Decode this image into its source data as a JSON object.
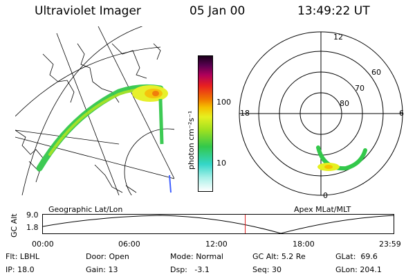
{
  "header": {
    "title": "Ultraviolet Imager",
    "date": "05 Jan 00",
    "time": "13:49:22 UT"
  },
  "colorbar": {
    "unit_label": "photon cm⁻²s⁻¹",
    "tick_high": "100",
    "tick_low": "10"
  },
  "polar_plot": {
    "mlt_labels": {
      "top": "12",
      "left": "18",
      "right": "6",
      "bottom": "0"
    },
    "lat_labels": [
      "60",
      "70",
      "80"
    ]
  },
  "map_labels": {
    "left": "Geographic Lat/Lon",
    "right": "Apex MLat/MLT"
  },
  "orbit_panel": {
    "ylabel": "GC Alt",
    "ytick_high": "9.0",
    "ytick_low": "1.8",
    "xticks": [
      "00:00",
      "06:00",
      "12:00",
      "18:00",
      "23:59"
    ],
    "current_time_fraction": 0.577
  },
  "info": {
    "flt_label": "Flt:",
    "flt_value": "LBHL",
    "ip_label": "IP:",
    "ip_value": "18.0",
    "door_label": "Door:",
    "door_value": "Open",
    "gain_label": "Gain:",
    "gain_value": "13",
    "mode_label": "Mode:",
    "mode_value": "Normal",
    "dsp_label": "Dsp:",
    "dsp_value": "-3.1",
    "gcalt_label": "GC Alt:",
    "gcalt_value": "5.2 Re",
    "seq_label": "Seq:",
    "seq_value": "30",
    "glat_label": "GLat:",
    "glat_value": "69.6",
    "glon_label": "GLon:",
    "glon_value": "204.1"
  },
  "colors": {
    "scale": [
      "#ffffff",
      "#a8f0e8",
      "#33d6c8",
      "#33c84b",
      "#9de020",
      "#e6f020",
      "#f5c000",
      "#f07800",
      "#e82020",
      "#b0005a",
      "#5a0050",
      "#1a001a"
    ]
  }
}
